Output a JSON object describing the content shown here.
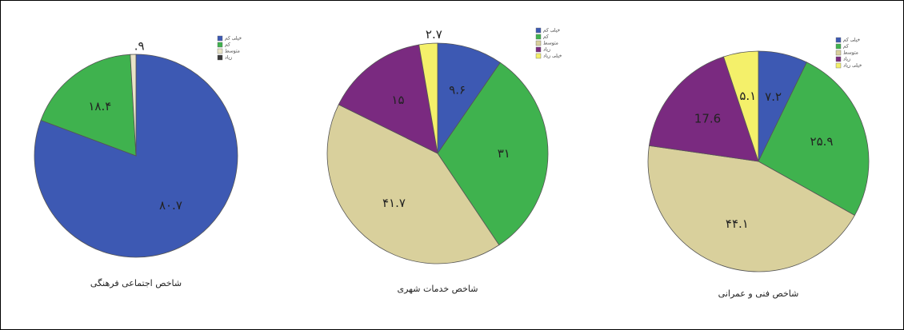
{
  "chart_data": [
    {
      "type": "pie",
      "title": "شاخص اجتماعی فرهنگی",
      "categories": [
        "خیلی کم",
        "کم",
        "متوسط",
        "زیاد"
      ],
      "values": [
        80.7,
        18.4,
        0.9,
        null
      ],
      "value_labels": [
        "۸۰.۷",
        "۱۸.۴",
        ".۹",
        null
      ],
      "colors": [
        "#3d59b3",
        "#3fb24e",
        "#e9e4c8",
        "#3a3a3a"
      ]
    },
    {
      "type": "pie",
      "title": "شاخص خدمات شهری",
      "categories": [
        "خیلی کم",
        "کم",
        "متوسط",
        "زیاد",
        "خیلی زیاد"
      ],
      "values": [
        9.6,
        31,
        41.7,
        15,
        2.7
      ],
      "value_labels": [
        "۹.۶",
        "۳۱",
        "۴۱.۷",
        "۱۵",
        "۲.۷"
      ],
      "colors": [
        "#3d59b3",
        "#3fb24e",
        "#d9d09c",
        "#7a2a80",
        "#f4f06a"
      ]
    },
    {
      "type": "pie",
      "title": "شاخص فنی و عمرانی",
      "categories": [
        "خیلی کم",
        "کم",
        "متوسط",
        "زیاد",
        "خیلی زیاد"
      ],
      "values": [
        7.2,
        25.9,
        44.1,
        17.6,
        5.1
      ],
      "value_labels": [
        "۷.۲",
        "۲۵.۹",
        "۴۴.۱",
        "17.6",
        "۵.۱"
      ],
      "colors": [
        "#3d59b3",
        "#3fb24e",
        "#d9d09c",
        "#7a2a80",
        "#f4f06a"
      ]
    }
  ]
}
